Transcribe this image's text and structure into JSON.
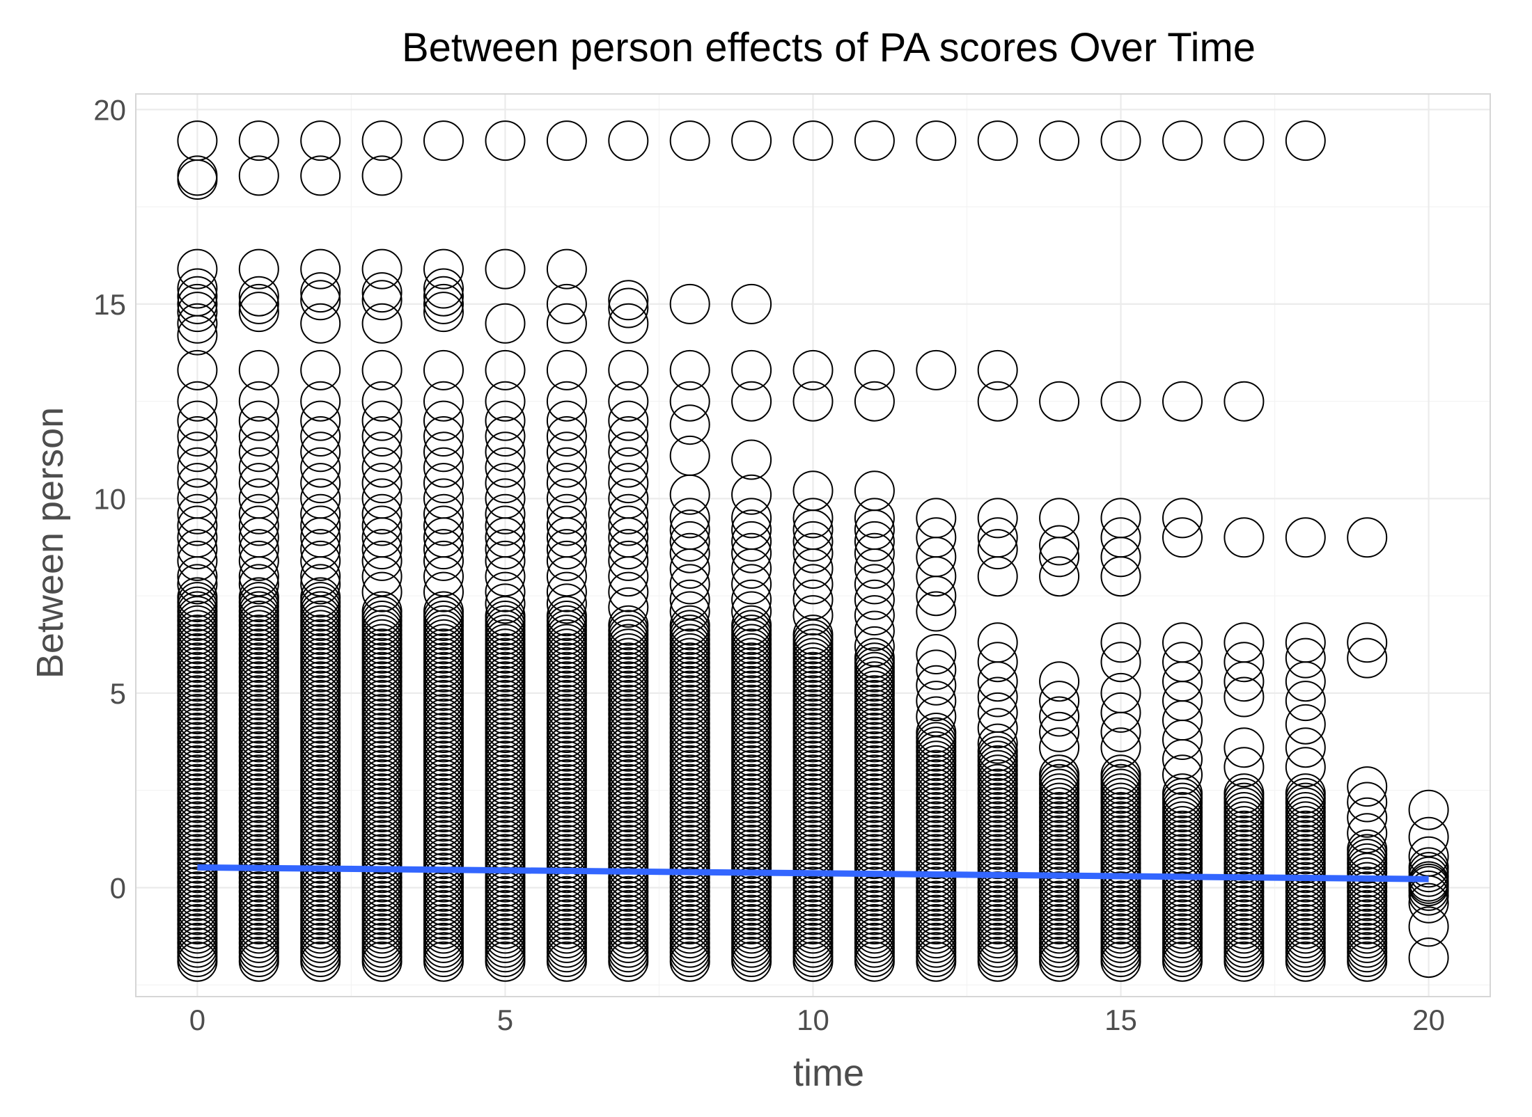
{
  "chart_data": {
    "type": "scatter",
    "title": "Between person effects of PA scores Over Time",
    "xlabel": "time",
    "ylabel": "Between person",
    "xlim": [
      -1,
      21
    ],
    "ylim": [
      -2.8,
      20.4
    ],
    "x_ticks": [
      0,
      5,
      10,
      15,
      20
    ],
    "x_tick_labels": [
      "0",
      "5",
      "10",
      "15",
      "20"
    ],
    "y_ticks": [
      0,
      5,
      10,
      15,
      20
    ],
    "y_tick_labels": [
      "0",
      "5",
      "10",
      "15",
      "20"
    ],
    "grid": true,
    "legend": "none",
    "marker": "open circle",
    "marker_color": "#000000",
    "trend_color": "#3366ff",
    "trend_line": {
      "x": [
        0,
        20
      ],
      "y": [
        0.52,
        0.22
      ]
    },
    "columns": [
      {
        "x": 0,
        "dense_range": [
          -1.9,
          7.5
        ],
        "points": [
          19.2,
          18.3,
          18.2,
          15.9,
          15.4,
          15.2,
          15.0,
          14.8,
          14.5,
          14.2,
          13.3,
          12.5,
          12.0,
          11.6,
          11.2,
          10.8,
          10.4,
          10.0,
          9.6,
          9.3,
          9.0,
          8.7,
          8.4,
          8.0,
          7.8
        ]
      },
      {
        "x": 1,
        "dense_range": [
          -1.9,
          7.5
        ],
        "points": [
          19.2,
          18.3,
          15.9,
          15.2,
          15.0,
          14.8,
          13.3,
          12.5,
          12.0,
          11.6,
          11.2,
          10.8,
          10.4,
          10.0,
          9.6,
          9.3,
          9.0,
          8.7,
          8.4,
          8.0,
          7.8
        ]
      },
      {
        "x": 2,
        "dense_range": [
          -1.9,
          7.5
        ],
        "points": [
          19.2,
          18.3,
          15.9,
          15.3,
          15.1,
          14.5,
          13.3,
          12.5,
          12.0,
          11.6,
          11.2,
          10.8,
          10.4,
          10.0,
          9.6,
          9.3,
          9.0,
          8.7,
          8.4,
          8.0,
          7.8
        ]
      },
      {
        "x": 3,
        "dense_range": [
          -1.9,
          7.2
        ],
        "points": [
          19.2,
          18.3,
          15.9,
          15.3,
          15.1,
          14.5,
          13.3,
          12.5,
          12.0,
          11.6,
          11.2,
          10.8,
          10.4,
          10.0,
          9.6,
          9.3,
          9.0,
          8.7,
          8.4,
          8.0,
          7.6
        ]
      },
      {
        "x": 4,
        "dense_range": [
          -1.9,
          7.2
        ],
        "points": [
          19.2,
          15.9,
          15.4,
          15.2,
          15.0,
          14.8,
          13.3,
          12.5,
          12.0,
          11.6,
          11.2,
          10.8,
          10.4,
          10.0,
          9.6,
          9.3,
          9.0,
          8.7,
          8.4,
          8.0,
          7.6
        ]
      },
      {
        "x": 5,
        "dense_range": [
          -1.9,
          7.0
        ],
        "points": [
          19.2,
          15.9,
          14.5,
          13.3,
          12.5,
          12.0,
          11.6,
          11.2,
          10.8,
          10.4,
          10.0,
          9.6,
          9.3,
          9.0,
          8.7,
          8.4,
          8.0,
          7.6,
          7.3
        ]
      },
      {
        "x": 6,
        "dense_range": [
          -1.9,
          7.0
        ],
        "points": [
          19.2,
          15.9,
          15.0,
          14.5,
          13.3,
          12.5,
          12.0,
          11.6,
          11.2,
          10.8,
          10.4,
          10.0,
          9.6,
          9.3,
          9.0,
          8.7,
          8.4,
          8.0,
          7.6,
          7.3
        ]
      },
      {
        "x": 7,
        "dense_range": [
          -1.9,
          6.8
        ],
        "points": [
          19.2,
          15.1,
          14.9,
          14.5,
          13.3,
          12.5,
          12.0,
          11.6,
          11.2,
          10.8,
          10.4,
          10.0,
          9.6,
          9.3,
          9.0,
          8.7,
          8.4,
          8.0,
          7.6,
          7.2
        ]
      },
      {
        "x": 8,
        "dense_range": [
          -1.9,
          6.8
        ],
        "points": [
          19.2,
          15.0,
          13.3,
          12.5,
          11.9,
          11.1,
          10.1,
          9.5,
          9.2,
          8.9,
          8.6,
          8.2,
          7.8,
          7.4,
          7.1
        ]
      },
      {
        "x": 9,
        "dense_range": [
          -1.9,
          6.8
        ],
        "points": [
          19.2,
          15.0,
          13.3,
          12.5,
          11.0,
          10.1,
          9.5,
          9.2,
          8.9,
          8.6,
          8.2,
          7.8,
          7.4,
          7.1
        ]
      },
      {
        "x": 10,
        "dense_range": [
          -1.9,
          6.5
        ],
        "points": [
          19.2,
          13.3,
          12.5,
          10.2,
          9.5,
          9.2,
          8.9,
          8.6,
          8.2,
          7.8,
          7.4,
          7.0
        ]
      },
      {
        "x": 11,
        "dense_range": [
          -1.9,
          6.0
        ],
        "points": [
          19.2,
          13.3,
          12.5,
          10.2,
          9.5,
          9.2,
          8.9,
          8.6,
          8.2,
          7.8,
          7.4,
          7.0,
          6.6,
          6.2
        ]
      },
      {
        "x": 12,
        "dense_range": [
          -1.9,
          4.0
        ],
        "points": [
          19.2,
          13.3,
          9.5,
          9.0,
          8.5,
          8.0,
          7.5,
          7.1,
          6.0,
          5.6,
          5.2,
          4.8,
          4.4
        ]
      },
      {
        "x": 13,
        "dense_range": [
          -1.9,
          3.5
        ],
        "points": [
          19.2,
          13.3,
          12.5,
          9.5,
          9.0,
          8.7,
          8.0,
          6.3,
          5.8,
          5.3,
          4.9,
          4.5,
          4.1,
          3.7
        ]
      },
      {
        "x": 14,
        "dense_range": [
          -1.9,
          3.0
        ],
        "points": [
          19.2,
          12.5,
          9.5,
          8.8,
          8.5,
          8.0,
          5.3,
          4.8,
          4.4,
          4.0,
          3.6
        ]
      },
      {
        "x": 15,
        "dense_range": [
          -1.9,
          3.0
        ],
        "points": [
          19.2,
          12.5,
          9.5,
          9.0,
          8.5,
          8.0,
          6.3,
          5.8,
          5.0,
          4.5,
          4.0,
          3.6
        ]
      },
      {
        "x": 16,
        "dense_range": [
          -1.9,
          2.5
        ],
        "points": [
          19.2,
          12.5,
          9.5,
          9.0,
          6.3,
          5.8,
          5.3,
          4.8,
          4.3,
          3.8,
          3.3,
          2.9
        ]
      },
      {
        "x": 17,
        "dense_range": [
          -1.9,
          2.5
        ],
        "points": [
          19.2,
          12.5,
          9.0,
          6.3,
          5.8,
          5.3,
          4.9,
          3.6,
          3.1
        ]
      },
      {
        "x": 18,
        "dense_range": [
          -1.9,
          2.5
        ],
        "points": [
          19.2,
          9.0,
          6.3,
          5.9,
          5.3,
          4.8,
          4.2,
          3.6,
          3.1
        ]
      },
      {
        "x": 19,
        "dense_range": [
          -1.9,
          1.0
        ],
        "points": [
          9.0,
          6.3,
          5.9,
          2.6,
          2.2,
          1.8,
          1.4
        ]
      },
      {
        "x": 20,
        "dense_range": [
          -0.2,
          0.6
        ],
        "points": [
          2.0,
          1.3,
          0.8,
          0.1,
          -0.4,
          -1.0,
          -1.8
        ]
      }
    ]
  }
}
